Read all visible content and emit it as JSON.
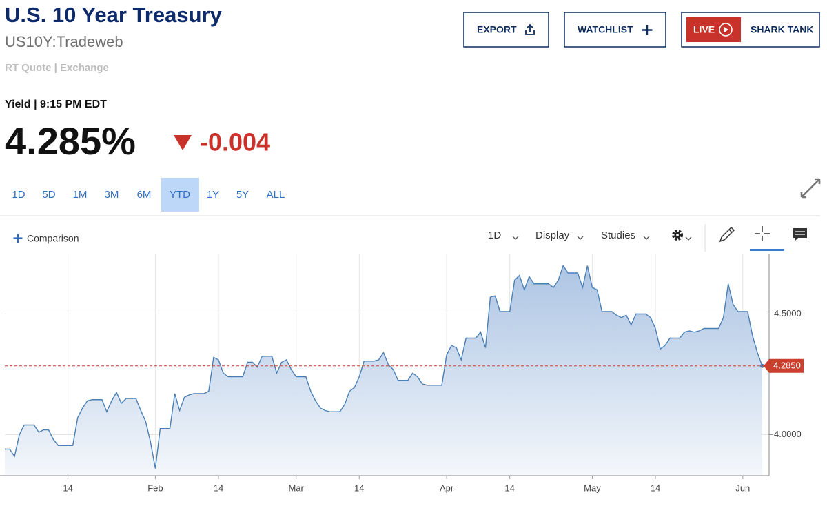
{
  "header": {
    "title": "U.S. 10 Year Treasury",
    "symbol": "US10Y:Tradeweb",
    "quote_type": "RT Quote | Exchange"
  },
  "actions": {
    "export": "EXPORT",
    "watchlist": "WATCHLIST",
    "live": "LIVE",
    "show": "SHARK TANK"
  },
  "quote": {
    "label": "Yield | 9:15 PM EDT",
    "last": "4.285%",
    "change": "-0.004"
  },
  "ranges": [
    "1D",
    "5D",
    "1M",
    "3M",
    "6M",
    "YTD",
    "1Y",
    "5Y",
    "ALL"
  ],
  "active_range": "YTD",
  "toolbar": {
    "comparison": "Comparison",
    "interval": "1D",
    "display": "Display",
    "studies": "Studies"
  },
  "chart_data": {
    "type": "area",
    "color": "#4a7fb5",
    "fill_color": "#a9c2e2",
    "grid": true,
    "x": [
      "Jan 1",
      "Jan 2",
      "Jan 3",
      "Jan 4",
      "Jan 5",
      "Jan 6",
      "Jan 7",
      "Jan 8",
      "Jan 9",
      "Jan 10",
      "Jan 11",
      "Jan 12",
      "Jan 13",
      "Jan 14",
      "Jan 15",
      "Jan 16",
      "Jan 17",
      "Jan 18",
      "Jan 19",
      "Jan 20",
      "Jan 21",
      "Jan 22",
      "Jan 23",
      "Jan 24",
      "Jan 25",
      "Jan 26",
      "Jan 27",
      "Jan 28",
      "Jan 29",
      "Jan 30",
      "Jan 31",
      "Feb 1",
      "Feb 2",
      "Feb 3",
      "Feb 4",
      "Feb 5",
      "Feb 6",
      "Feb 7",
      "Feb 8",
      "Feb 9",
      "Feb 10",
      "Feb 11",
      "Feb 12",
      "Feb 13",
      "Feb 14",
      "Feb 15",
      "Feb 16",
      "Feb 17",
      "Feb 18",
      "Feb 19",
      "Feb 20",
      "Feb 21",
      "Feb 22",
      "Feb 23",
      "Feb 24",
      "Feb 25",
      "Feb 26",
      "Feb 27",
      "Feb 28",
      "Feb 29",
      "Mar 1",
      "Mar 2",
      "Mar 3",
      "Mar 4",
      "Mar 5",
      "Mar 6",
      "Mar 7",
      "Mar 8",
      "Mar 9",
      "Mar 10",
      "Mar 11",
      "Mar 12",
      "Mar 13",
      "Mar 14",
      "Mar 15",
      "Mar 16",
      "Mar 17",
      "Mar 18",
      "Mar 19",
      "Mar 20",
      "Mar 21",
      "Mar 22",
      "Mar 23",
      "Mar 24",
      "Mar 25",
      "Mar 26",
      "Mar 27",
      "Mar 28",
      "Mar 29",
      "Mar 30",
      "Mar 31",
      "Apr 1",
      "Apr 2",
      "Apr 3",
      "Apr 4",
      "Apr 5",
      "Apr 6",
      "Apr 7",
      "Apr 8",
      "Apr 9",
      "Apr 10",
      "Apr 11",
      "Apr 12",
      "Apr 13",
      "Apr 14",
      "Apr 15",
      "Apr 16",
      "Apr 17",
      "Apr 18",
      "Apr 19",
      "Apr 20",
      "Apr 21",
      "Apr 22",
      "Apr 23",
      "Apr 24",
      "Apr 25",
      "Apr 26",
      "Apr 27",
      "Apr 28",
      "Apr 29",
      "Apr 30",
      "May 1",
      "May 2",
      "May 3",
      "May 4",
      "May 5",
      "May 6",
      "May 7",
      "May 8",
      "May 9",
      "May 10",
      "May 11",
      "May 12",
      "May 13",
      "May 14",
      "May 15",
      "May 16",
      "May 17",
      "May 18",
      "May 19",
      "May 20",
      "May 21",
      "May 22",
      "May 23",
      "May 24",
      "May 25",
      "May 26",
      "May 27",
      "May 28",
      "May 29",
      "May 30",
      "May 31",
      "Jun 1",
      "Jun 2",
      "Jun 3",
      "Jun 4",
      "Jun 5"
    ],
    "values": [
      3.94,
      3.94,
      3.91,
      4.0,
      4.04,
      4.04,
      4.04,
      4.01,
      4.02,
      4.02,
      3.98,
      3.955,
      3.955,
      3.955,
      3.955,
      4.07,
      4.11,
      4.14,
      4.145,
      4.145,
      4.145,
      4.095,
      4.14,
      4.175,
      4.13,
      4.15,
      4.15,
      4.15,
      4.1,
      4.055,
      3.97,
      3.86,
      4.025,
      4.025,
      4.025,
      4.17,
      4.1,
      4.155,
      4.165,
      4.17,
      4.17,
      4.17,
      4.18,
      4.32,
      4.31,
      4.255,
      4.24,
      4.24,
      4.24,
      4.24,
      4.3,
      4.3,
      4.28,
      4.325,
      4.325,
      4.325,
      4.255,
      4.3,
      4.31,
      4.27,
      4.24,
      4.24,
      4.24,
      4.18,
      4.14,
      4.11,
      4.1,
      4.095,
      4.095,
      4.095,
      4.125,
      4.18,
      4.195,
      4.24,
      4.305,
      4.305,
      4.305,
      4.31,
      4.34,
      4.29,
      4.27,
      4.225,
      4.225,
      4.225,
      4.255,
      4.24,
      4.21,
      4.205,
      4.205,
      4.205,
      4.205,
      4.33,
      4.37,
      4.36,
      4.31,
      4.4,
      4.4,
      4.4,
      4.425,
      4.36,
      4.57,
      4.575,
      4.51,
      4.51,
      4.51,
      4.64,
      4.66,
      4.6,
      4.655,
      4.625,
      4.625,
      4.625,
      4.625,
      4.61,
      4.64,
      4.7,
      4.67,
      4.67,
      4.67,
      4.61,
      4.7,
      4.61,
      4.6,
      4.51,
      4.51,
      4.51,
      4.495,
      4.485,
      4.495,
      4.455,
      4.5,
      4.5,
      4.5,
      4.485,
      4.44,
      4.355,
      4.37,
      4.4,
      4.4,
      4.4,
      4.425,
      4.43,
      4.425,
      4.43,
      4.44,
      4.44,
      4.44,
      4.44,
      4.485,
      4.625,
      4.54,
      4.51,
      4.51,
      4.51,
      4.41,
      4.34,
      4.285
    ],
    "ylim": [
      3.83,
      4.75
    ],
    "yticks": [
      {
        "value": 4,
        "label": "4.0000"
      },
      {
        "value": 4.5,
        "label": "4.5000"
      }
    ],
    "xticks": [
      {
        "value": "Jan 14",
        "label": "14"
      },
      {
        "value": "Feb 1",
        "label": "Feb"
      },
      {
        "value": "Feb 14",
        "label": "14"
      },
      {
        "value": "Mar 1",
        "label": "Mar"
      },
      {
        "value": "Mar 14",
        "label": "14"
      },
      {
        "value": "Apr 1",
        "label": "Apr"
      },
      {
        "value": "Apr 14",
        "label": "14"
      },
      {
        "value": "May 1",
        "label": "May"
      },
      {
        "value": "May 14",
        "label": "14"
      },
      {
        "value": "Jun 1",
        "label": "Jun"
      }
    ],
    "reference_line": {
      "value": 4.285,
      "label": "4.2850",
      "color": "#c9402f"
    }
  }
}
